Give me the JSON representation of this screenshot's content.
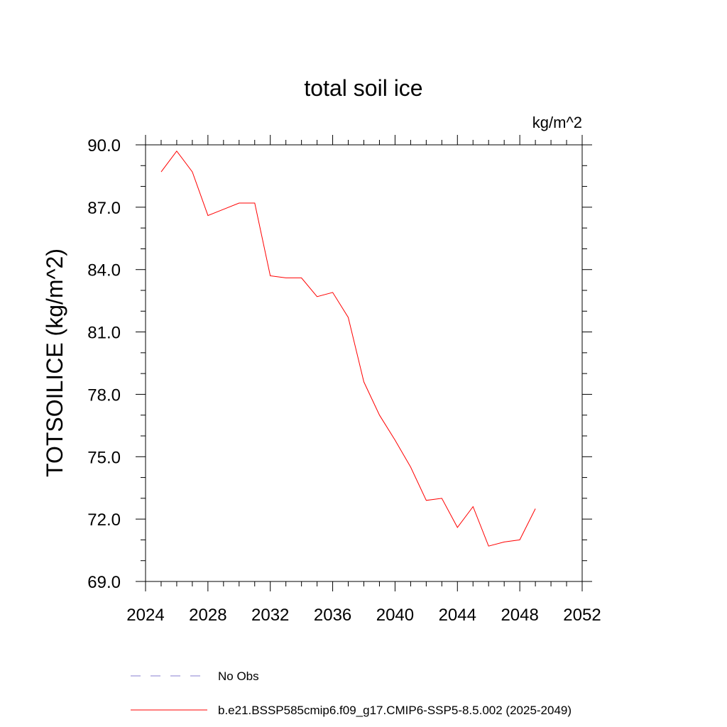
{
  "chart_data": {
    "type": "line",
    "title": "total soil ice",
    "units_label": "kg/m^2",
    "xlabel": "",
    "ylabel": "TOTSOILICE  (kg/m^2)",
    "xlim": [
      2024,
      2052
    ],
    "ylim": [
      69.0,
      90.0
    ],
    "x_ticks": [
      2024,
      2028,
      2032,
      2036,
      2040,
      2044,
      2048,
      2052
    ],
    "x_tick_labels": [
      "2024",
      "2028",
      "2032",
      "2036",
      "2040",
      "2044",
      "2048",
      "2052"
    ],
    "y_ticks": [
      69.0,
      72.0,
      75.0,
      78.0,
      81.0,
      84.0,
      87.0,
      90.0
    ],
    "y_tick_labels": [
      "69.0",
      "72.0",
      "75.0",
      "78.0",
      "81.0",
      "84.0",
      "87.0",
      "90.0"
    ],
    "series": [
      {
        "name": "b.e21.BSSP585cmip6.f09_g17.CMIP6-SSP5-8.5.002 (2025-2049)",
        "color": "#ff0000",
        "x": [
          2025,
          2026,
          2027,
          2028,
          2029,
          2030,
          2031,
          2032,
          2033,
          2034,
          2035,
          2036,
          2037,
          2038,
          2039,
          2040,
          2041,
          2042,
          2043,
          2044,
          2045,
          2046,
          2047,
          2048,
          2049
        ],
        "values": [
          88.7,
          89.7,
          88.7,
          86.6,
          86.9,
          87.2,
          87.2,
          83.7,
          83.6,
          83.6,
          82.7,
          82.9,
          81.7,
          78.6,
          77.0,
          75.8,
          74.5,
          72.9,
          73.0,
          71.6,
          72.6,
          70.7,
          70.9,
          71.0,
          72.5
        ]
      }
    ],
    "legend": [
      {
        "label": "No Obs",
        "color": "#8a7fd0",
        "style": "dashed"
      },
      {
        "label": "b.e21.BSSP585cmip6.f09_g17.CMIP6-SSP5-8.5.002 (2025-2049)",
        "color": "#ff0000",
        "style": "solid"
      }
    ],
    "legend_position": "bottom"
  }
}
